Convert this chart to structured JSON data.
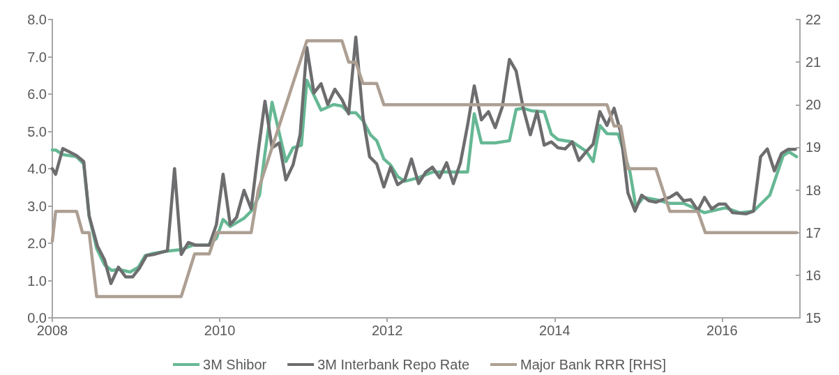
{
  "chart_data": {
    "type": "line",
    "legend": "bottom",
    "grid": false,
    "marker": "none",
    "line_style": "solid",
    "xlim": [
      2008,
      2016.93
    ],
    "xticks": [
      2008,
      2010,
      2012,
      2014,
      2016
    ],
    "ylim": [
      0,
      8
    ],
    "yticks": [
      {
        "value": 0,
        "label": "0.0"
      },
      {
        "value": 1,
        "label": "1.0"
      },
      {
        "value": 2,
        "label": "2.0"
      },
      {
        "value": 3,
        "label": "3.0"
      },
      {
        "value": 4,
        "label": "4.0"
      },
      {
        "value": 5,
        "label": "5.0"
      },
      {
        "value": 6,
        "label": "6.0"
      },
      {
        "value": 7,
        "label": "7.0"
      },
      {
        "value": 8,
        "label": "8.0"
      }
    ],
    "y2lim": [
      15,
      22
    ],
    "y2ticks": [
      15,
      16,
      17,
      18,
      19,
      20,
      21,
      22
    ],
    "series": [
      {
        "name": "3M Shibor",
        "color": "#66b894",
        "x": [
          2008.0,
          2008.04,
          2008.125,
          2008.29,
          2008.375,
          2008.44,
          2008.53,
          2008.625,
          2008.71,
          2008.79,
          2008.93,
          2009.03,
          2009.11,
          2009.21,
          2009.375,
          2009.54,
          2009.68,
          2009.86,
          2009.96,
          2010.04,
          2010.125,
          2010.29,
          2010.375,
          2010.475,
          2010.54,
          2010.625,
          2010.79,
          2010.875,
          2010.975,
          2011.04,
          2011.21,
          2011.36,
          2011.46,
          2011.54,
          2011.625,
          2011.71,
          2011.8,
          2011.875,
          2011.96,
          2012.04,
          2012.125,
          2012.21,
          2012.375,
          2012.54,
          2012.96,
          2013.04,
          2013.125,
          2013.29,
          2013.46,
          2013.54,
          2013.625,
          2013.73,
          2013.875,
          2013.96,
          2014.04,
          2014.21,
          2014.375,
          2014.46,
          2014.54,
          2014.625,
          2014.76,
          2014.9,
          2014.97,
          2015.06,
          2015.21,
          2015.375,
          2015.54,
          2015.79,
          2016.04,
          2016.21,
          2016.375,
          2016.57,
          2016.73,
          2016.8,
          2016.89
        ],
        "values": [
          4.5,
          4.5,
          4.38,
          4.32,
          4.13,
          2.73,
          1.86,
          1.42,
          1.27,
          1.3,
          1.23,
          1.36,
          1.67,
          1.73,
          1.79,
          1.83,
          1.95,
          1.95,
          2.13,
          2.64,
          2.45,
          2.67,
          2.86,
          3.29,
          4.41,
          5.78,
          4.19,
          4.56,
          4.63,
          6.37,
          5.57,
          5.72,
          5.68,
          5.5,
          5.5,
          5.29,
          4.91,
          4.75,
          4.26,
          4.1,
          3.79,
          3.66,
          3.76,
          3.91,
          3.91,
          5.47,
          4.69,
          4.69,
          4.75,
          5.59,
          5.62,
          5.55,
          5.53,
          4.93,
          4.78,
          4.72,
          4.47,
          4.19,
          5.16,
          4.94,
          4.93,
          3.91,
          2.98,
          3.23,
          3.17,
          3.07,
          3.07,
          2.82,
          2.95,
          2.82,
          2.86,
          3.29,
          4.35,
          4.45,
          4.32
        ]
      },
      {
        "name": "3M Interbank Repo Rate",
        "color": "#6d6d6f",
        "x": [
          2008.0,
          2008.04,
          2008.125,
          2008.29,
          2008.375,
          2008.44,
          2008.54,
          2008.625,
          2008.7,
          2008.79,
          2008.875,
          2008.96,
          2009.04,
          2009.125,
          2009.21,
          2009.375,
          2009.46,
          2009.54,
          2009.625,
          2009.71,
          2009.875,
          2009.96,
          2010.04,
          2010.125,
          2010.2,
          2010.29,
          2010.375,
          2010.46,
          2010.54,
          2010.625,
          2010.71,
          2010.79,
          2010.875,
          2010.96,
          2011.04,
          2011.125,
          2011.21,
          2011.29,
          2011.375,
          2011.46,
          2011.54,
          2011.625,
          2011.71,
          2011.79,
          2011.875,
          2011.96,
          2012.04,
          2012.125,
          2012.21,
          2012.29,
          2012.375,
          2012.46,
          2012.54,
          2012.625,
          2012.71,
          2012.79,
          2012.875,
          2012.96,
          2013.04,
          2013.125,
          2013.21,
          2013.29,
          2013.375,
          2013.46,
          2013.54,
          2013.625,
          2013.71,
          2013.79,
          2013.875,
          2013.96,
          2014.04,
          2014.125,
          2014.21,
          2014.29,
          2014.375,
          2014.46,
          2014.54,
          2014.625,
          2014.71,
          2014.79,
          2014.875,
          2014.96,
          2015.04,
          2015.125,
          2015.21,
          2015.29,
          2015.375,
          2015.46,
          2015.54,
          2015.625,
          2015.71,
          2015.79,
          2015.875,
          2015.96,
          2016.04,
          2016.125,
          2016.29,
          2016.375,
          2016.46,
          2016.54,
          2016.625,
          2016.71,
          2016.79,
          2016.875
        ],
        "values": [
          4.0,
          3.85,
          4.54,
          4.35,
          4.19,
          2.73,
          1.92,
          1.55,
          0.92,
          1.36,
          1.1,
          1.1,
          1.33,
          1.67,
          1.7,
          1.8,
          4.0,
          1.7,
          2.02,
          1.95,
          1.95,
          2.5,
          3.85,
          2.5,
          2.69,
          3.42,
          2.92,
          4.47,
          5.81,
          4.56,
          4.69,
          3.7,
          4.1,
          4.91,
          7.25,
          6.03,
          6.28,
          5.72,
          6.13,
          5.85,
          5.47,
          7.53,
          5.4,
          4.32,
          4.13,
          3.51,
          4.04,
          3.57,
          3.7,
          4.26,
          3.6,
          3.91,
          4.04,
          3.76,
          4.16,
          3.6,
          4.16,
          5.16,
          6.22,
          5.31,
          5.53,
          5.1,
          5.66,
          6.93,
          6.62,
          5.62,
          4.91,
          5.53,
          4.63,
          4.72,
          4.56,
          4.53,
          4.72,
          4.22,
          4.45,
          4.66,
          5.53,
          5.16,
          5.62,
          4.97,
          3.35,
          2.86,
          3.29,
          3.14,
          3.1,
          3.17,
          3.23,
          3.35,
          3.14,
          3.17,
          2.88,
          3.23,
          2.92,
          3.05,
          3.05,
          2.82,
          2.79,
          2.86,
          4.32,
          4.53,
          3.94,
          4.41,
          4.52,
          4.52
        ]
      },
      {
        "name": "Major Bank RRR [RHS]",
        "color": "#ad9f93",
        "axis": "y2",
        "x": [
          2008.0,
          2008.04,
          2008.29,
          2008.36,
          2008.44,
          2008.53,
          2009.54,
          2009.7,
          2009.875,
          2009.96,
          2010.375,
          2010.46,
          2011.04,
          2011.46,
          2011.54,
          2011.625,
          2011.71,
          2011.875,
          2011.96,
          2014.625,
          2014.71,
          2014.79,
          2014.875,
          2015.21,
          2015.375,
          2015.71,
          2015.8,
          2016.89
        ],
        "values": [
          16.8,
          17.5,
          17.5,
          17.0,
          17.0,
          15.5,
          15.5,
          16.5,
          16.5,
          17.0,
          17.0,
          18.0,
          21.5,
          21.5,
          21.0,
          21.0,
          20.5,
          20.5,
          20.0,
          20.0,
          19.5,
          19.5,
          18.5,
          18.5,
          17.5,
          17.5,
          17.0,
          17.0
        ]
      }
    ]
  }
}
